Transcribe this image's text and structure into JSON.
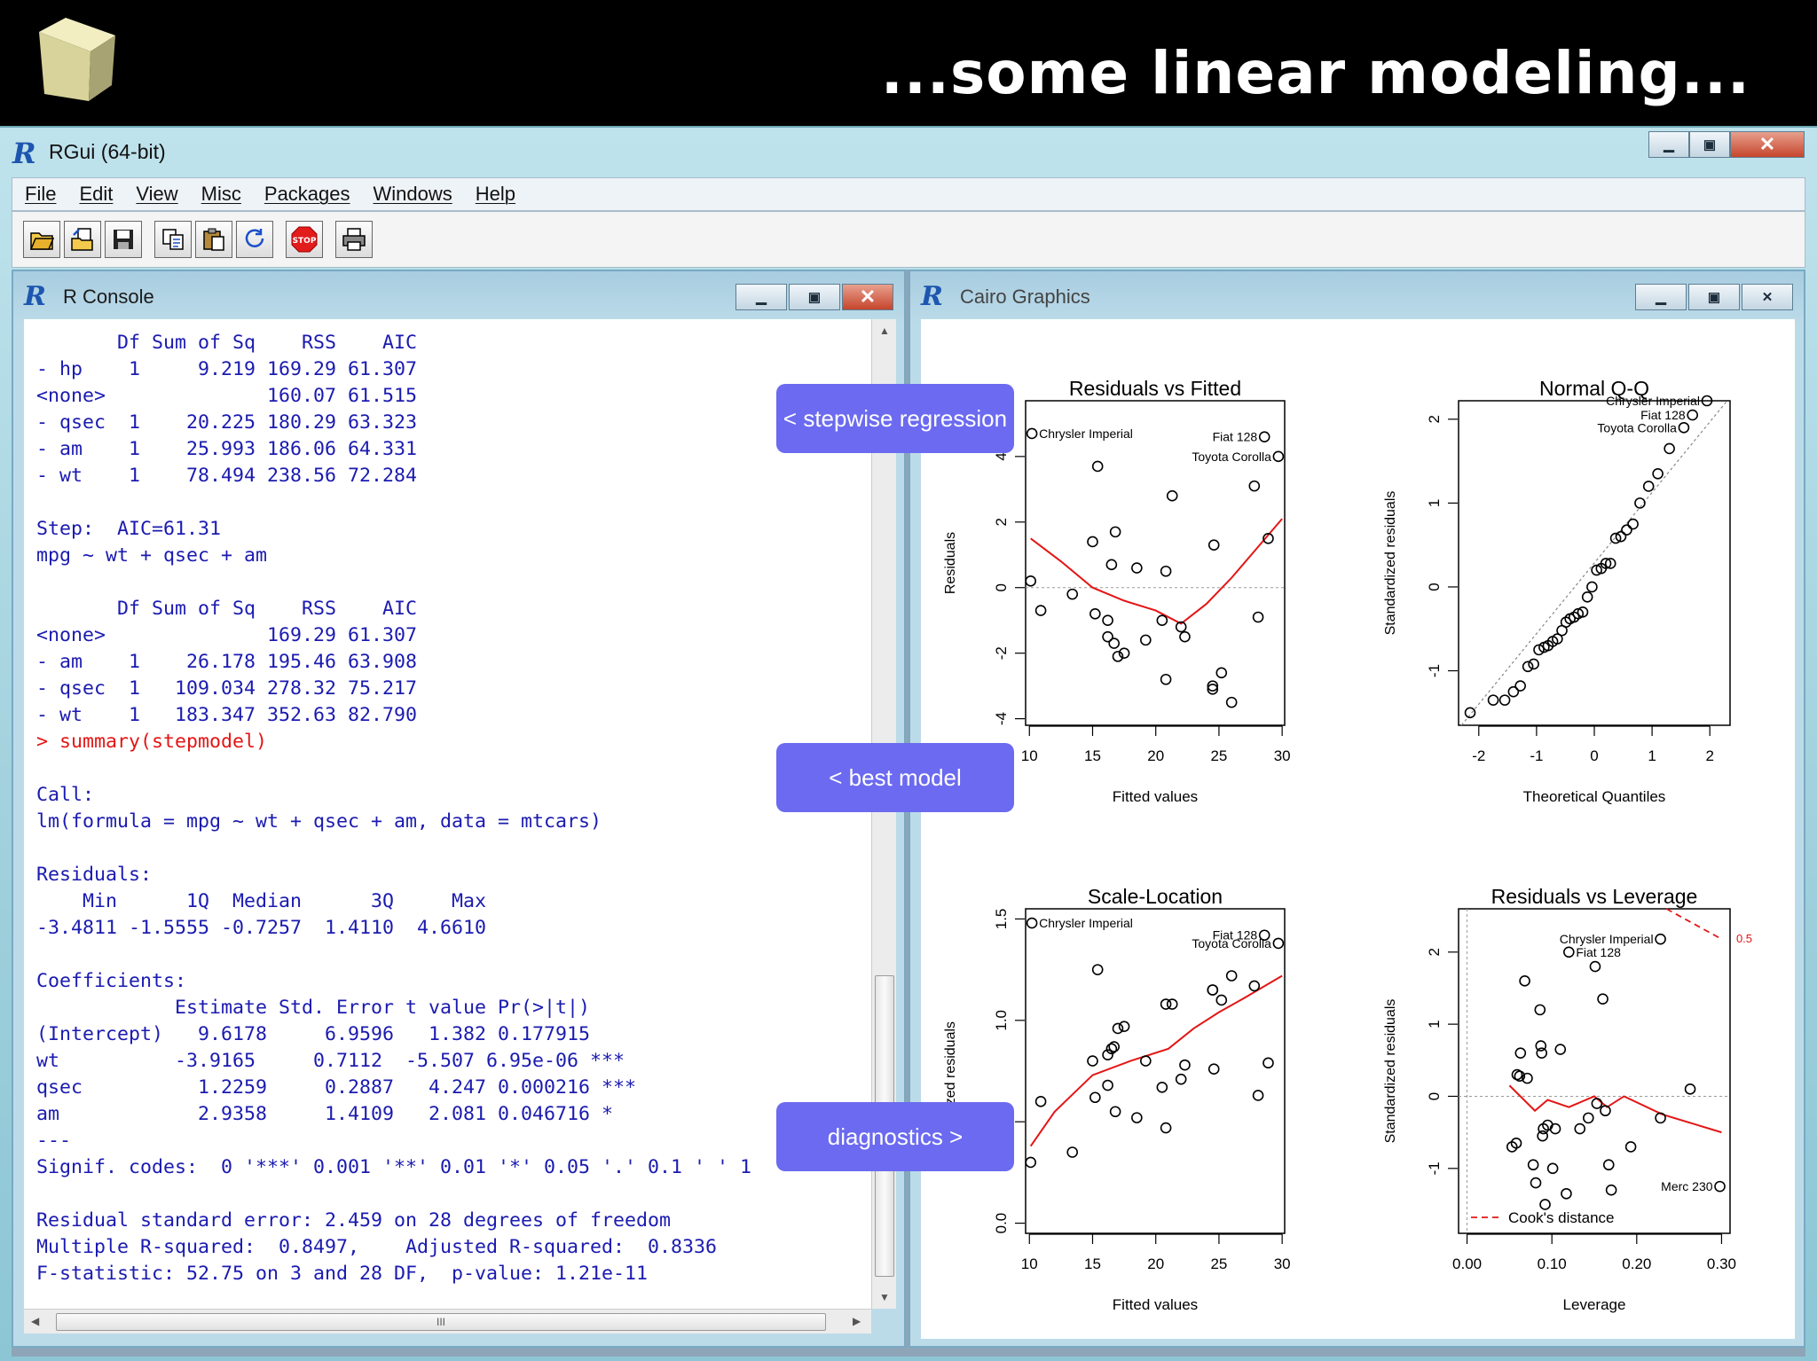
{
  "slide": {
    "title": "...some linear modeling..."
  },
  "window": {
    "title": "RGui (64-bit)"
  },
  "menu": [
    "File",
    "Edit",
    "View",
    "Misc",
    "Packages",
    "Windows",
    "Help"
  ],
  "toolbar": [
    "open-script-icon",
    "load-workspace-icon",
    "save-icon",
    "copy-icon",
    "paste-icon",
    "copy-paste-icon",
    "stop-icon",
    "print-icon"
  ],
  "console": {
    "title": "R Console",
    "lines": [
      "       Df Sum of Sq    RSS    AIC",
      "- hp    1     9.219 169.29 61.307",
      "<none>              160.07 61.515",
      "- qsec  1    20.225 180.29 63.323",
      "- am    1    25.993 186.06 64.331",
      "- wt    1    78.494 238.56 72.284",
      "",
      "Step:  AIC=61.31",
      "mpg ~ wt + qsec + am",
      "",
      "       Df Sum of Sq    RSS    AIC",
      "<none>              169.29 61.307",
      "- am    1    26.178 195.46 63.908",
      "- qsec  1   109.034 278.32 75.217",
      "- wt    1   183.347 352.63 82.790",
      "> summary(stepmodel)",
      "",
      "Call:",
      "lm(formula = mpg ~ wt + qsec + am, data = mtcars)",
      "",
      "Residuals:",
      "    Min      1Q  Median      3Q     Max",
      "-3.4811 -1.5555 -0.7257  1.4110  4.6610",
      "",
      "Coefficients:",
      "            Estimate Std. Error t value Pr(>|t|)",
      "(Intercept)   9.6178     6.9596   1.382 0.177915",
      "wt          -3.9165     0.7112  -5.507 6.95e-06 ***",
      "qsec          1.2259     0.2887   4.247 0.000216 ***",
      "am            2.9358     1.4109   2.081 0.046716 *",
      "---",
      "Signif. codes:  0 '***' 0.001 '**' 0.01 '*' 0.05 '.' 0.1 ' ' 1",
      "",
      "Residual standard error: 2.459 on 28 degrees of freedom",
      "Multiple R-squared:  0.8497,    Adjusted R-squared:  0.8336",
      "F-statistic: 52.75 on 3 and 28 DF,  p-value: 1.21e-11"
    ],
    "command_line_index": 15,
    "hscroll_label": "III"
  },
  "graphics": {
    "title": "Cairo Graphics"
  },
  "callouts": {
    "stepwise": "< stepwise regression",
    "best": "< best model",
    "diagnostics": "diagnostics >"
  },
  "colors": {
    "callout": "#6b6af0",
    "console_text": "#1b1bb0",
    "console_command": "#e41515",
    "smoother": "#e41515"
  },
  "chart_data": [
    {
      "type": "scatter",
      "title": "Residuals vs Fitted",
      "xlabel": "Fitted values",
      "ylabel": "Residuals",
      "xticks": [
        "10",
        "15",
        "20",
        "25",
        "30"
      ],
      "yticks": [
        "-4",
        "-2",
        "0",
        "2",
        "4"
      ],
      "xlim": [
        9.7,
        30.2
      ],
      "ylim": [
        -4.2,
        5.7
      ],
      "points": [
        [
          10.1,
          0.2
        ],
        [
          10.9,
          -0.7
        ],
        [
          13.4,
          -0.2
        ],
        [
          15.0,
          1.4
        ],
        [
          15.2,
          -0.8
        ],
        [
          15.4,
          3.7
        ],
        [
          16.2,
          -1.0
        ],
        [
          16.2,
          -1.5
        ],
        [
          16.5,
          0.7
        ],
        [
          16.7,
          -1.7
        ],
        [
          16.8,
          1.7
        ],
        [
          17.0,
          -2.1
        ],
        [
          17.5,
          -2.0
        ],
        [
          18.5,
          0.6
        ],
        [
          19.2,
          -1.6
        ],
        [
          20.5,
          -1.0
        ],
        [
          20.8,
          0.5
        ],
        [
          20.8,
          -2.8
        ],
        [
          21.3,
          2.8
        ],
        [
          22.0,
          -1.2
        ],
        [
          22.3,
          -1.5
        ],
        [
          24.5,
          -3.0
        ],
        [
          24.5,
          -3.1
        ],
        [
          24.6,
          1.3
        ],
        [
          25.2,
          -2.6
        ],
        [
          26.0,
          -3.5
        ],
        [
          27.8,
          3.1
        ],
        [
          28.1,
          -0.9
        ],
        [
          28.9,
          1.5
        ],
        [
          29.7,
          4.0
        ],
        [
          10.2,
          4.7
        ],
        [
          28.6,
          4.6
        ]
      ],
      "smoother": [
        [
          10.1,
          1.5
        ],
        [
          12.5,
          0.8
        ],
        [
          15.0,
          0.0
        ],
        [
          17.5,
          -0.4
        ],
        [
          20.0,
          -0.7
        ],
        [
          22.0,
          -1.1
        ],
        [
          24.0,
          -0.5
        ],
        [
          26.0,
          0.3
        ],
        [
          28.0,
          1.2
        ],
        [
          30.0,
          2.1
        ]
      ],
      "reference_line": 0,
      "labels": [
        {
          "text": "Chrysler Imperial",
          "x": 10.2,
          "y": 4.7
        },
        {
          "text": "Fiat 128",
          "x": 28.6,
          "y": 4.6
        },
        {
          "text": "Toyota Corolla",
          "x": 29.7,
          "y": 4.0
        }
      ]
    },
    {
      "type": "scatter",
      "title": "Normal Q-Q",
      "xlabel": "Theoretical Quantiles",
      "ylabel": "Standardized residuals",
      "xticks": [
        "-2",
        "-1",
        "0",
        "1",
        "2"
      ],
      "yticks": [
        "-1",
        "0",
        "1",
        "2"
      ],
      "xlim": [
        -2.35,
        2.35
      ],
      "ylim": [
        -1.65,
        2.22
      ],
      "points": [
        [
          -2.15,
          -1.5
        ],
        [
          -1.75,
          -1.35
        ],
        [
          -1.55,
          -1.35
        ],
        [
          -1.4,
          -1.25
        ],
        [
          -1.28,
          -1.18
        ],
        [
          -1.15,
          -0.95
        ],
        [
          -1.05,
          -0.92
        ],
        [
          -0.96,
          -0.75
        ],
        [
          -0.87,
          -0.72
        ],
        [
          -0.8,
          -0.7
        ],
        [
          -0.72,
          -0.65
        ],
        [
          -0.64,
          -0.62
        ],
        [
          -0.56,
          -0.52
        ],
        [
          -0.49,
          -0.42
        ],
        [
          -0.42,
          -0.38
        ],
        [
          -0.35,
          -0.36
        ],
        [
          -0.28,
          -0.32
        ],
        [
          -0.2,
          -0.3
        ],
        [
          -0.12,
          -0.12
        ],
        [
          -0.04,
          0.0
        ],
        [
          0.04,
          0.2
        ],
        [
          0.12,
          0.22
        ],
        [
          0.2,
          0.28
        ],
        [
          0.28,
          0.28
        ],
        [
          0.37,
          0.58
        ],
        [
          0.46,
          0.6
        ],
        [
          0.56,
          0.68
        ],
        [
          0.67,
          0.75
        ],
        [
          0.79,
          1.0
        ],
        [
          0.94,
          1.2
        ],
        [
          1.1,
          1.35
        ],
        [
          1.3,
          1.65
        ],
        [
          1.55,
          1.9
        ],
        [
          1.7,
          2.05
        ],
        [
          1.95,
          2.22
        ]
      ],
      "reference_line": [
        [
          -2.3,
          -1.65
        ],
        [
          2.3,
          2.22
        ]
      ],
      "labels": [
        {
          "text": "Chrysler Imperial",
          "x": 1.95,
          "y": 2.22
        },
        {
          "text": "Fiat 128",
          "x": 1.7,
          "y": 2.05
        },
        {
          "text": "Toyota Corolla",
          "x": 1.55,
          "y": 1.9
        }
      ]
    },
    {
      "type": "scatter",
      "title": "Scale-Location",
      "xlabel": "Fitted values",
      "ylabel": "√|Standardized residuals|",
      "visible_ylabel": "rdized residuals",
      "xticks": [
        "10",
        "15",
        "20",
        "25",
        "30"
      ],
      "yticks": [
        "0.0",
        "0.5",
        "1.0",
        "1.5"
      ],
      "xlim": [
        9.7,
        30.2
      ],
      "ylim": [
        -0.05,
        1.55
      ],
      "points": [
        [
          10.1,
          0.3
        ],
        [
          10.9,
          0.6
        ],
        [
          13.4,
          0.35
        ],
        [
          15.0,
          0.8
        ],
        [
          15.2,
          0.62
        ],
        [
          15.4,
          1.25
        ],
        [
          16.2,
          0.68
        ],
        [
          16.2,
          0.83
        ],
        [
          16.5,
          0.86
        ],
        [
          16.7,
          0.87
        ],
        [
          16.8,
          0.55
        ],
        [
          17.0,
          0.96
        ],
        [
          17.5,
          0.97
        ],
        [
          18.5,
          0.52
        ],
        [
          19.2,
          0.8
        ],
        [
          20.5,
          0.67
        ],
        [
          20.8,
          1.08
        ],
        [
          20.8,
          0.47
        ],
        [
          21.3,
          1.08
        ],
        [
          22.0,
          0.71
        ],
        [
          22.3,
          0.78
        ],
        [
          24.5,
          1.15
        ],
        [
          24.5,
          1.15
        ],
        [
          24.6,
          0.76
        ],
        [
          25.2,
          1.1
        ],
        [
          26.0,
          1.22
        ],
        [
          27.8,
          1.17
        ],
        [
          28.1,
          0.63
        ],
        [
          28.9,
          0.79
        ],
        [
          29.7,
          1.38
        ],
        [
          10.2,
          1.48
        ],
        [
          28.6,
          1.42
        ]
      ],
      "smoother": [
        [
          10.1,
          0.38
        ],
        [
          12.0,
          0.55
        ],
        [
          15.0,
          0.73
        ],
        [
          18.0,
          0.8
        ],
        [
          21.0,
          0.86
        ],
        [
          23.0,
          0.96
        ],
        [
          25.0,
          1.04
        ],
        [
          27.0,
          1.11
        ],
        [
          30.0,
          1.22
        ]
      ],
      "labels": [
        {
          "text": "Chrysler Imperial",
          "x": 10.2,
          "y": 1.48
        },
        {
          "text": "Fiat 128",
          "x": 28.6,
          "y": 1.42
        },
        {
          "text": "Toyota Corolla",
          "x": 29.7,
          "y": 1.38
        }
      ]
    },
    {
      "type": "scatter",
      "title": "Residuals vs Leverage",
      "xlabel": "Leverage",
      "ylabel": "Standardized residuals",
      "xticks": [
        "0.00",
        "0.10",
        "0.20",
        "0.30"
      ],
      "yticks": [
        "-1",
        "0",
        "1",
        "2"
      ],
      "xlim": [
        -0.01,
        0.31
      ],
      "ylim": [
        -1.9,
        2.6
      ],
      "points": [
        [
          0.053,
          -0.7
        ],
        [
          0.058,
          -0.65
        ],
        [
          0.059,
          0.3
        ],
        [
          0.062,
          0.28
        ],
        [
          0.063,
          0.6
        ],
        [
          0.068,
          1.6
        ],
        [
          0.071,
          0.25
        ],
        [
          0.078,
          -0.95
        ],
        [
          0.081,
          -1.2
        ],
        [
          0.086,
          1.2
        ],
        [
          0.087,
          0.7
        ],
        [
          0.088,
          0.6
        ],
        [
          0.089,
          -0.55
        ],
        [
          0.09,
          -0.45
        ],
        [
          0.092,
          -1.5
        ],
        [
          0.095,
          -0.4
        ],
        [
          0.101,
          -1.0
        ],
        [
          0.104,
          -0.45
        ],
        [
          0.11,
          0.65
        ],
        [
          0.117,
          -1.35
        ],
        [
          0.12,
          2.0
        ],
        [
          0.133,
          -0.45
        ],
        [
          0.143,
          -0.3
        ],
        [
          0.151,
          1.8
        ],
        [
          0.153,
          -0.1
        ],
        [
          0.16,
          1.35
        ],
        [
          0.163,
          -0.2
        ],
        [
          0.167,
          -0.95
        ],
        [
          0.17,
          -1.3
        ],
        [
          0.193,
          -0.7
        ],
        [
          0.228,
          -0.3
        ],
        [
          0.263,
          0.1
        ],
        [
          0.298,
          -1.25
        ],
        [
          0.228,
          2.18
        ]
      ],
      "smoother": [
        [
          0.05,
          0.15
        ],
        [
          0.08,
          -0.2
        ],
        [
          0.095,
          -0.05
        ],
        [
          0.12,
          -0.15
        ],
        [
          0.15,
          0.0
        ],
        [
          0.165,
          -0.15
        ],
        [
          0.185,
          0.0
        ],
        [
          0.23,
          -0.25
        ],
        [
          0.3,
          -0.5
        ]
      ],
      "cooks_distance": [
        [
          0.235,
          2.6
        ],
        [
          0.3,
          2.18
        ]
      ],
      "cooks_label": "0.5",
      "legend": "Cook's distance",
      "labels": [
        {
          "text": "Chrysler Imperial",
          "x": 0.228,
          "y": 2.18
        },
        {
          "text": "Fiat 128",
          "x": 0.12,
          "y": 2.0
        },
        {
          "text": "Merc 230",
          "x": 0.298,
          "y": -1.25
        }
      ]
    }
  ]
}
